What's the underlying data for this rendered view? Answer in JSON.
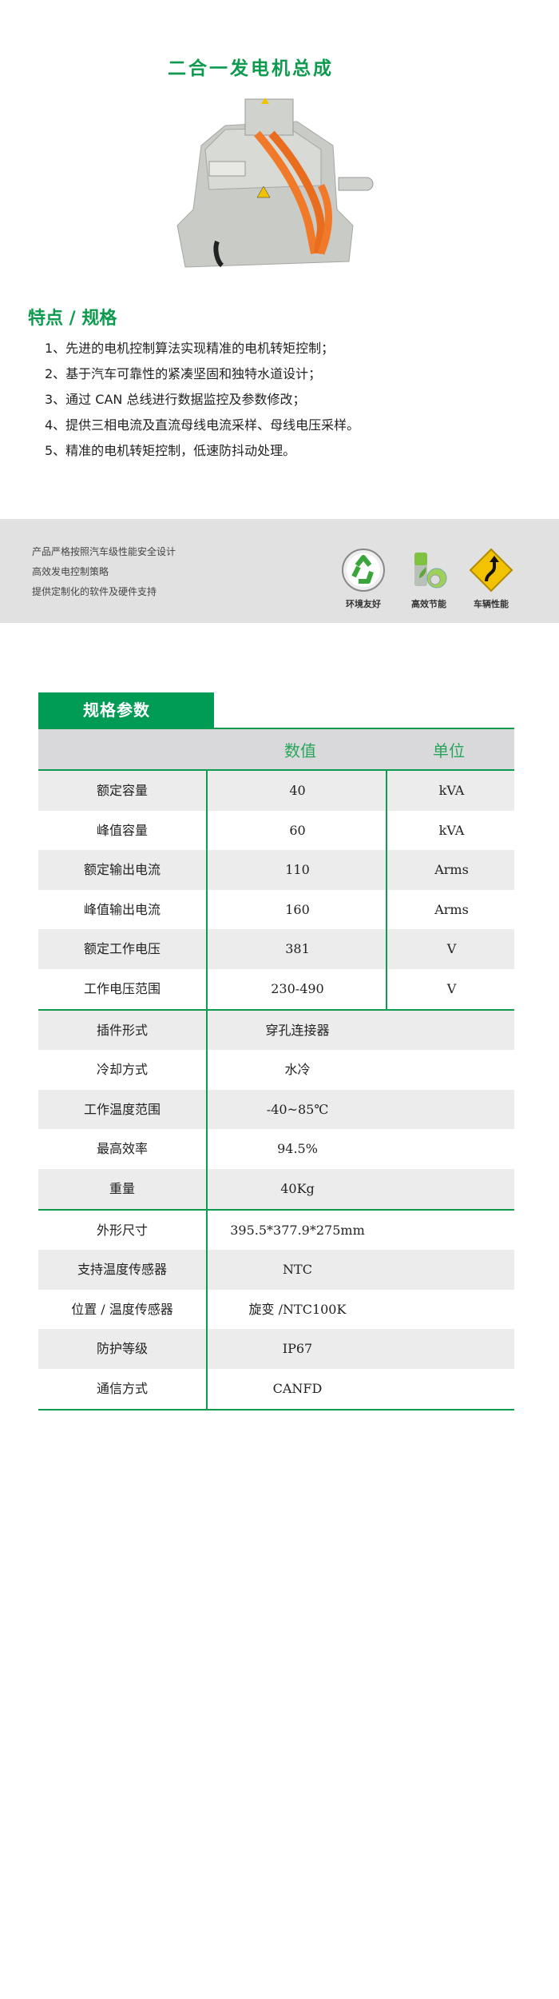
{
  "title": "二合一发电机总成",
  "product_image": {
    "icon": "motor-assembly-photo",
    "colors": {
      "housing": "#c9cbc6",
      "cable": "#f07a2a"
    }
  },
  "features": {
    "title": "特点 / 规格",
    "items": [
      "1、先进的电机控制算法实现精准的电机转矩控制；",
      "2、基于汽车可靠性的紧凑坚固和独特水道设计；",
      "3、通过 CAN 总线进行数据监控及参数修改；",
      "4、提供三相电流及直流母线电流采样、母线电压采样。",
      "5、精准的电机转矩控制，低速防抖动处理。"
    ]
  },
  "band": {
    "lines": [
      "产品严格按照汽车级性能安全设计",
      "高效发电控制策略",
      "提供定制化的软件及硬件支持"
    ],
    "badges": [
      {
        "icon": "recycle-icon",
        "label": "环境友好"
      },
      {
        "icon": "battery-leaf-icon",
        "label": "高效节能"
      },
      {
        "icon": "winding-road-sign-icon",
        "label": "车辆性能"
      }
    ]
  },
  "specs": {
    "tab_title": "规格参数",
    "header": {
      "value": "数值",
      "unit": "单位"
    },
    "group1": [
      {
        "name": "额定容量",
        "value": "40",
        "unit": "kVA"
      },
      {
        "name": "峰值容量",
        "value": "60",
        "unit": "kVA"
      },
      {
        "name": "额定输出电流",
        "value": "110",
        "unit": "Arms"
      },
      {
        "name": "峰值输出电流",
        "value": "160",
        "unit": "Arms"
      },
      {
        "name": "额定工作电压",
        "value": "381",
        "unit": "V"
      },
      {
        "name": "工作电压范围",
        "value": "230-490",
        "unit": "V"
      }
    ],
    "group2": [
      {
        "name": "插件形式",
        "value": "穿孔连接器"
      },
      {
        "name": "冷却方式",
        "value": "水冷"
      },
      {
        "name": "工作温度范围",
        "value": "-40~85℃"
      },
      {
        "name": "最高效率",
        "value": "94.5%"
      },
      {
        "name": "重量",
        "value": "40Kg"
      }
    ],
    "group3": [
      {
        "name": "外形尺寸",
        "value": "395.5*377.9*275mm"
      },
      {
        "name": "支持温度传感器",
        "value": "NTC"
      },
      {
        "name": "位置 / 温度传感器",
        "value": "旋变 /NTC100K"
      },
      {
        "name": "防护等级",
        "value": "IP67"
      },
      {
        "name": "通信方式",
        "value": "CANFD"
      }
    ]
  },
  "colors": {
    "accent": "#009b55",
    "band": "#e1e1e1",
    "header_row": "#d9d9db",
    "stripe": "#ececec"
  }
}
